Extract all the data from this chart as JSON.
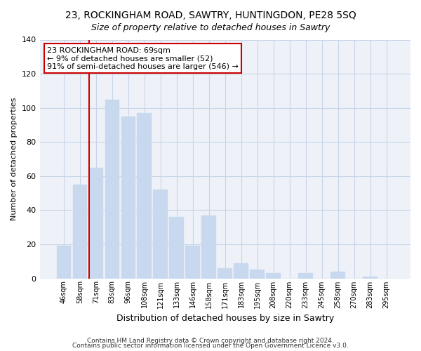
{
  "title": "23, ROCKINGHAM ROAD, SAWTRY, HUNTINGDON, PE28 5SQ",
  "subtitle": "Size of property relative to detached houses in Sawtry",
  "xlabel": "Distribution of detached houses by size in Sawtry",
  "ylabel": "Number of detached properties",
  "bar_color": "#c8d8ee",
  "vline_color": "#cc0000",
  "vline_index": 2,
  "categories": [
    "46sqm",
    "58sqm",
    "71sqm",
    "83sqm",
    "96sqm",
    "108sqm",
    "121sqm",
    "133sqm",
    "146sqm",
    "158sqm",
    "171sqm",
    "183sqm",
    "195sqm",
    "208sqm",
    "220sqm",
    "233sqm",
    "245sqm",
    "258sqm",
    "270sqm",
    "283sqm",
    "295sqm"
  ],
  "values": [
    19,
    55,
    65,
    105,
    95,
    97,
    52,
    36,
    19,
    37,
    6,
    9,
    5,
    3,
    0,
    3,
    0,
    4,
    0,
    1,
    0
  ],
  "ylim": [
    0,
    140
  ],
  "yticks": [
    0,
    20,
    40,
    60,
    80,
    100,
    120,
    140
  ],
  "annotation_title": "23 ROCKINGHAM ROAD: 69sqm",
  "annotation_line1": "← 9% of detached houses are smaller (52)",
  "annotation_line2": "91% of semi-detached houses are larger (546) →",
  "footer1": "Contains HM Land Registry data © Crown copyright and database right 2024.",
  "footer2": "Contains public sector information licensed under the Open Government Licence v3.0.",
  "background_color": "#ffffff",
  "plot_bg_color": "#eef2f8",
  "grid_color": "#c8d4e8",
  "title_fontsize": 10,
  "subtitle_fontsize": 9
}
